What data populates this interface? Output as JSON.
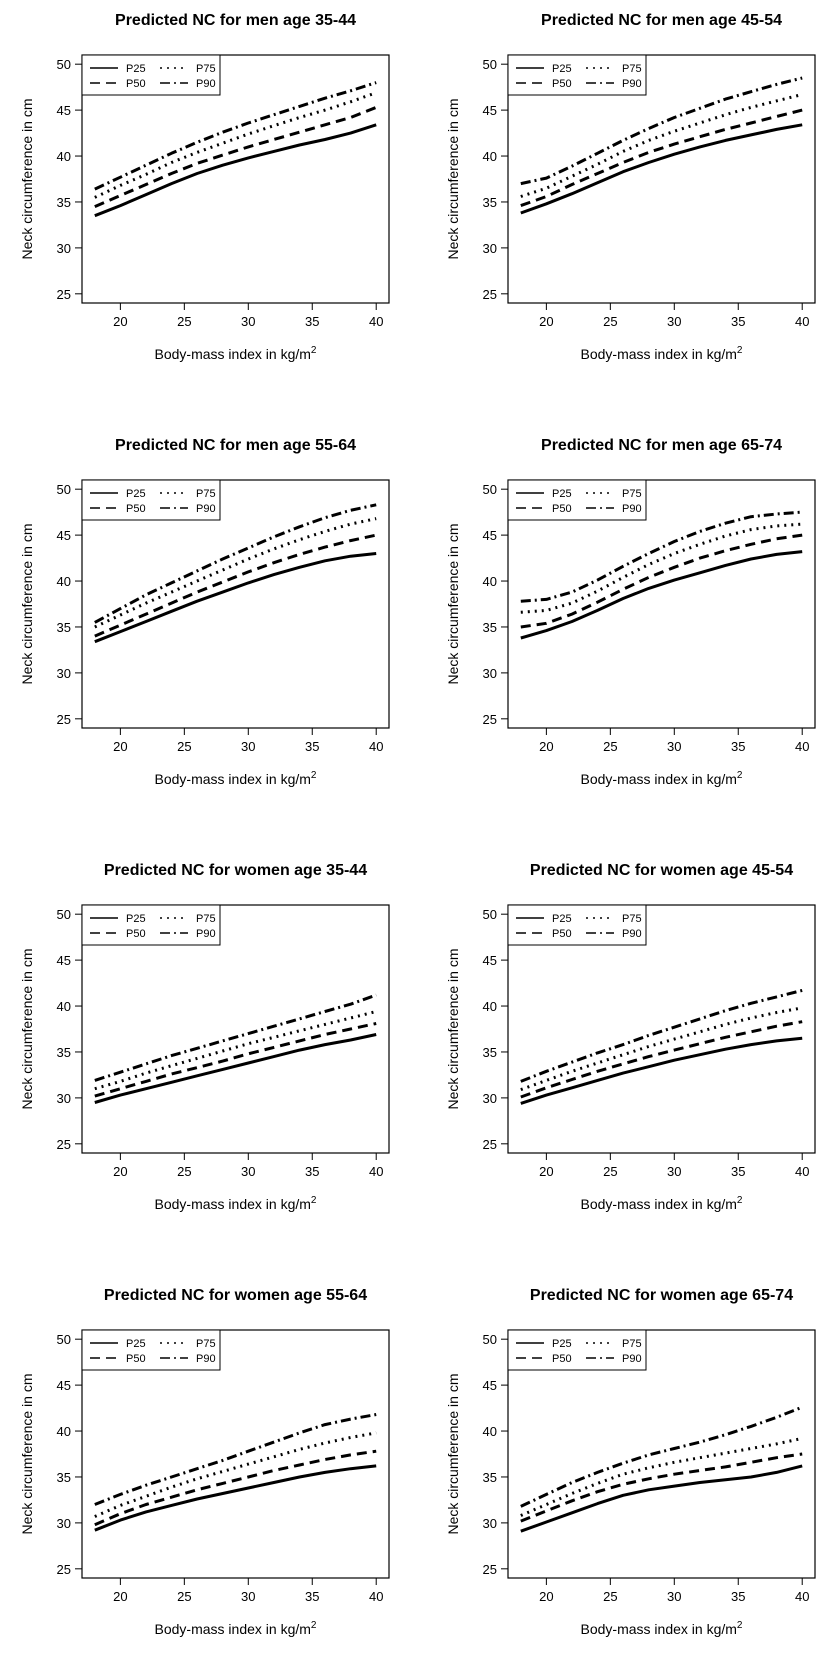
{
  "figure": {
    "panels_layout": "4 rows x 2 columns",
    "line_color": "#000000",
    "background": "#ffffff"
  },
  "chart_data": [
    {
      "type": "line",
      "title": "Predicted NC for men age 35-44",
      "xlabel": "Body-mass index in kg/m",
      "xlabel_superscript": "2",
      "ylabel": "Neck circumference in cm",
      "xlim": [
        17,
        41
      ],
      "ylim": [
        24,
        51
      ],
      "xticks": [
        20,
        25,
        30,
        35,
        40
      ],
      "yticks": [
        25,
        30,
        35,
        40,
        45,
        50
      ],
      "legend_position": "top-left",
      "x": [
        18,
        20,
        22,
        24,
        26,
        28,
        30,
        32,
        34,
        36,
        38,
        40
      ],
      "series": [
        {
          "name": "P25",
          "dash": "solid",
          "values": [
            33.5,
            34.6,
            35.8,
            37.0,
            38.1,
            39.0,
            39.8,
            40.5,
            41.2,
            41.8,
            42.5,
            43.4
          ]
        },
        {
          "name": "P50",
          "dash": "dashed",
          "values": [
            34.5,
            35.7,
            36.9,
            38.1,
            39.2,
            40.1,
            41.0,
            41.8,
            42.6,
            43.4,
            44.2,
            45.3
          ]
        },
        {
          "name": "P75",
          "dash": "dotted",
          "values": [
            35.5,
            36.8,
            38.0,
            39.3,
            40.4,
            41.4,
            42.4,
            43.3,
            44.2,
            45.0,
            45.9,
            46.9
          ]
        },
        {
          "name": "P90",
          "dash": "dashdot",
          "values": [
            36.4,
            37.7,
            39.0,
            40.3,
            41.5,
            42.6,
            43.6,
            44.5,
            45.4,
            46.3,
            47.1,
            48.0
          ]
        }
      ]
    },
    {
      "type": "line",
      "title": "Predicted NC for men age 45-54",
      "xlabel": "Body-mass index in kg/m",
      "xlabel_superscript": "2",
      "ylabel": "Neck circumference in cm",
      "xlim": [
        17,
        41
      ],
      "ylim": [
        24,
        51
      ],
      "xticks": [
        20,
        25,
        30,
        35,
        40
      ],
      "yticks": [
        25,
        30,
        35,
        40,
        45,
        50
      ],
      "legend_position": "top-left",
      "x": [
        18,
        20,
        22,
        24,
        26,
        28,
        30,
        32,
        34,
        36,
        38,
        40
      ],
      "series": [
        {
          "name": "P25",
          "dash": "solid",
          "values": [
            33.8,
            34.8,
            35.9,
            37.1,
            38.3,
            39.3,
            40.2,
            41.0,
            41.7,
            42.3,
            42.9,
            43.4
          ]
        },
        {
          "name": "P50",
          "dash": "dashed",
          "values": [
            34.6,
            35.6,
            36.9,
            38.1,
            39.3,
            40.4,
            41.3,
            42.1,
            42.9,
            43.6,
            44.3,
            45.0
          ]
        },
        {
          "name": "P75",
          "dash": "dotted",
          "values": [
            35.6,
            36.5,
            37.8,
            39.1,
            40.5,
            41.7,
            42.7,
            43.6,
            44.5,
            45.3,
            46.0,
            46.7
          ]
        },
        {
          "name": "P90",
          "dash": "dashdot",
          "values": [
            37.0,
            37.6,
            38.9,
            40.3,
            41.7,
            43.0,
            44.2,
            45.2,
            46.2,
            47.0,
            47.8,
            48.5
          ]
        }
      ]
    },
    {
      "type": "line",
      "title": "Predicted NC for men age 55-64",
      "xlabel": "Body-mass index in kg/m",
      "xlabel_superscript": "2",
      "ylabel": "Neck circumference in cm",
      "xlim": [
        17,
        41
      ],
      "ylim": [
        24,
        51
      ],
      "xticks": [
        20,
        25,
        30,
        35,
        40
      ],
      "yticks": [
        25,
        30,
        35,
        40,
        45,
        50
      ],
      "legend_position": "top-left",
      "x": [
        18,
        20,
        22,
        24,
        26,
        28,
        30,
        32,
        34,
        36,
        38,
        40
      ],
      "series": [
        {
          "name": "P25",
          "dash": "solid",
          "values": [
            33.4,
            34.5,
            35.6,
            36.7,
            37.8,
            38.8,
            39.8,
            40.7,
            41.5,
            42.2,
            42.7,
            43.0
          ]
        },
        {
          "name": "P50",
          "dash": "dashed",
          "values": [
            34.0,
            35.2,
            36.4,
            37.6,
            38.8,
            39.9,
            41.0,
            42.0,
            42.9,
            43.7,
            44.4,
            45.0
          ]
        },
        {
          "name": "P75",
          "dash": "dotted",
          "values": [
            35.0,
            36.3,
            37.6,
            38.8,
            40.0,
            41.2,
            42.4,
            43.5,
            44.5,
            45.4,
            46.2,
            46.8
          ]
        },
        {
          "name": "P90",
          "dash": "dashdot",
          "values": [
            35.5,
            37.0,
            38.5,
            39.8,
            41.1,
            42.4,
            43.6,
            44.8,
            45.9,
            46.9,
            47.7,
            48.3
          ]
        }
      ]
    },
    {
      "type": "line",
      "title": "Predicted NC for men age 65-74",
      "xlabel": "Body-mass index in kg/m",
      "xlabel_superscript": "2",
      "ylabel": "Neck circumference in cm",
      "xlim": [
        17,
        41
      ],
      "ylim": [
        24,
        51
      ],
      "xticks": [
        20,
        25,
        30,
        35,
        40
      ],
      "yticks": [
        25,
        30,
        35,
        40,
        45,
        50
      ],
      "legend_position": "top-left",
      "x": [
        18,
        20,
        22,
        24,
        26,
        28,
        30,
        32,
        34,
        36,
        38,
        40
      ],
      "series": [
        {
          "name": "P25",
          "dash": "solid",
          "values": [
            33.8,
            34.6,
            35.6,
            36.8,
            38.1,
            39.2,
            40.1,
            40.9,
            41.7,
            42.4,
            42.9,
            43.2
          ]
        },
        {
          "name": "P50",
          "dash": "dashed",
          "values": [
            35.0,
            35.4,
            36.4,
            37.7,
            39.1,
            40.4,
            41.5,
            42.5,
            43.3,
            44.0,
            44.6,
            45.0
          ]
        },
        {
          "name": "P75",
          "dash": "dotted",
          "values": [
            36.6,
            36.8,
            37.6,
            38.9,
            40.4,
            41.8,
            43.0,
            44.0,
            44.9,
            45.6,
            46.0,
            46.2
          ]
        },
        {
          "name": "P90",
          "dash": "dashdot",
          "values": [
            37.8,
            38.0,
            38.8,
            40.1,
            41.6,
            43.0,
            44.3,
            45.4,
            46.3,
            47.0,
            47.3,
            47.5
          ]
        }
      ]
    },
    {
      "type": "line",
      "title": "Predicted NC for women age 35-44",
      "xlabel": "Body-mass index in kg/m",
      "xlabel_superscript": "2",
      "ylabel": "Neck circumference in cm",
      "xlim": [
        17,
        41
      ],
      "ylim": [
        24,
        51
      ],
      "xticks": [
        20,
        25,
        30,
        35,
        40
      ],
      "yticks": [
        25,
        30,
        35,
        40,
        45,
        50
      ],
      "legend_position": "top-left",
      "x": [
        18,
        20,
        22,
        24,
        26,
        28,
        30,
        32,
        34,
        36,
        38,
        40
      ],
      "series": [
        {
          "name": "P25",
          "dash": "solid",
          "values": [
            29.5,
            30.3,
            31.0,
            31.7,
            32.4,
            33.1,
            33.8,
            34.5,
            35.2,
            35.8,
            36.3,
            36.9
          ]
        },
        {
          "name": "P50",
          "dash": "dashed",
          "values": [
            30.2,
            31.0,
            31.8,
            32.6,
            33.3,
            34.0,
            34.8,
            35.5,
            36.2,
            36.9,
            37.5,
            38.1
          ]
        },
        {
          "name": "P75",
          "dash": "dotted",
          "values": [
            31.0,
            31.8,
            32.7,
            33.5,
            34.3,
            35.1,
            35.9,
            36.6,
            37.3,
            38.0,
            38.7,
            39.4
          ]
        },
        {
          "name": "P90",
          "dash": "dashdot",
          "values": [
            31.9,
            32.8,
            33.7,
            34.6,
            35.4,
            36.2,
            37.0,
            37.8,
            38.6,
            39.4,
            40.2,
            41.2
          ]
        }
      ]
    },
    {
      "type": "line",
      "title": "Predicted NC for women age 45-54",
      "xlabel": "Body-mass index in kg/m",
      "xlabel_superscript": "2",
      "ylabel": "Neck circumference in cm",
      "xlim": [
        17,
        41
      ],
      "ylim": [
        24,
        51
      ],
      "xticks": [
        20,
        25,
        30,
        35,
        40
      ],
      "yticks": [
        25,
        30,
        35,
        40,
        45,
        50
      ],
      "legend_position": "top-left",
      "x": [
        18,
        20,
        22,
        24,
        26,
        28,
        30,
        32,
        34,
        36,
        38,
        40
      ],
      "series": [
        {
          "name": "P25",
          "dash": "solid",
          "values": [
            29.4,
            30.3,
            31.1,
            31.9,
            32.7,
            33.4,
            34.1,
            34.7,
            35.3,
            35.8,
            36.2,
            36.5
          ]
        },
        {
          "name": "P50",
          "dash": "dashed",
          "values": [
            30.1,
            31.1,
            32.0,
            32.9,
            33.7,
            34.5,
            35.2,
            35.9,
            36.6,
            37.2,
            37.8,
            38.3
          ]
        },
        {
          "name": "P75",
          "dash": "dotted",
          "values": [
            30.9,
            31.9,
            32.9,
            33.8,
            34.7,
            35.6,
            36.4,
            37.2,
            38.0,
            38.7,
            39.3,
            39.8
          ]
        },
        {
          "name": "P90",
          "dash": "dashdot",
          "values": [
            31.8,
            32.9,
            33.9,
            34.9,
            35.8,
            36.8,
            37.7,
            38.6,
            39.5,
            40.3,
            41.0,
            41.7
          ]
        }
      ]
    },
    {
      "type": "line",
      "title": "Predicted NC for women age 55-64",
      "xlabel": "Body-mass index in kg/m",
      "xlabel_superscript": "2",
      "ylabel": "Neck circumference in cm",
      "xlim": [
        17,
        41
      ],
      "ylim": [
        24,
        51
      ],
      "xticks": [
        20,
        25,
        30,
        35,
        40
      ],
      "yticks": [
        25,
        30,
        35,
        40,
        45,
        50
      ],
      "legend_position": "top-left",
      "x": [
        18,
        20,
        22,
        24,
        26,
        28,
        30,
        32,
        34,
        36,
        38,
        40
      ],
      "series": [
        {
          "name": "P25",
          "dash": "solid",
          "values": [
            29.2,
            30.3,
            31.2,
            31.9,
            32.6,
            33.2,
            33.8,
            34.4,
            35.0,
            35.5,
            35.9,
            36.2
          ]
        },
        {
          "name": "P50",
          "dash": "dashed",
          "values": [
            29.8,
            31.0,
            32.0,
            32.8,
            33.6,
            34.3,
            35.0,
            35.7,
            36.3,
            36.9,
            37.4,
            37.8
          ]
        },
        {
          "name": "P75",
          "dash": "dotted",
          "values": [
            30.7,
            31.9,
            32.9,
            33.9,
            34.8,
            35.6,
            36.4,
            37.2,
            38.0,
            38.7,
            39.3,
            39.8
          ]
        },
        {
          "name": "P90",
          "dash": "dashdot",
          "values": [
            32.0,
            33.1,
            34.1,
            35.0,
            35.9,
            36.8,
            37.8,
            38.8,
            39.8,
            40.7,
            41.3,
            41.8
          ]
        }
      ]
    },
    {
      "type": "line",
      "title": "Predicted NC for women age 65-74",
      "xlabel": "Body-mass index in kg/m",
      "xlabel_superscript": "2",
      "ylabel": "Neck circumference in cm",
      "xlim": [
        17,
        41
      ],
      "ylim": [
        24,
        51
      ],
      "xticks": [
        20,
        25,
        30,
        35,
        40
      ],
      "yticks": [
        25,
        30,
        35,
        40,
        45,
        50
      ],
      "legend_position": "top-left",
      "x": [
        18,
        20,
        22,
        24,
        26,
        28,
        30,
        32,
        34,
        36,
        38,
        40
      ],
      "series": [
        {
          "name": "P25",
          "dash": "solid",
          "values": [
            29.1,
            30.1,
            31.1,
            32.1,
            33.0,
            33.6,
            34.0,
            34.4,
            34.7,
            35.0,
            35.5,
            36.2
          ]
        },
        {
          "name": "P50",
          "dash": "dashed",
          "values": [
            30.2,
            31.3,
            32.4,
            33.4,
            34.2,
            34.8,
            35.3,
            35.7,
            36.1,
            36.6,
            37.1,
            37.5
          ]
        },
        {
          "name": "P75",
          "dash": "dotted",
          "values": [
            30.8,
            32.0,
            33.2,
            34.3,
            35.3,
            36.0,
            36.6,
            37.1,
            37.6,
            38.1,
            38.6,
            39.2
          ]
        },
        {
          "name": "P90",
          "dash": "dashdot",
          "values": [
            31.8,
            33.1,
            34.4,
            35.5,
            36.5,
            37.4,
            38.1,
            38.8,
            39.6,
            40.5,
            41.5,
            42.6
          ]
        }
      ]
    }
  ]
}
